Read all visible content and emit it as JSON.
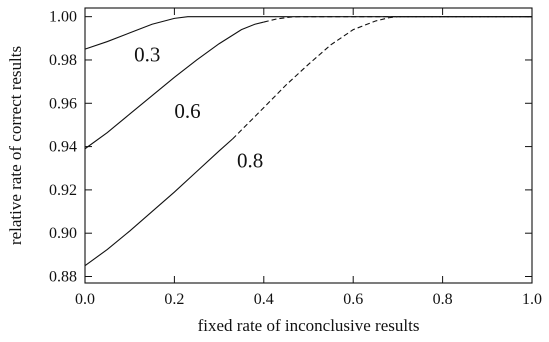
{
  "chart_data": {
    "type": "line",
    "title": "",
    "xlabel": "fixed rate of inconclusive results",
    "ylabel": "relative rate of correct results",
    "xlim": [
      0.0,
      1.0
    ],
    "ylim": [
      0.877,
      1.004
    ],
    "x_ticks": [
      0.0,
      0.2,
      0.4,
      0.6,
      0.8,
      1.0
    ],
    "x_tick_labels": [
      "0.0",
      "0.2",
      "0.4",
      "0.6",
      "0.8",
      "1.0"
    ],
    "y_ticks": [
      0.88,
      0.9,
      0.92,
      0.94,
      0.96,
      0.98,
      1.0
    ],
    "y_tick_labels": [
      "0.88",
      "0.90",
      "0.92",
      "0.94",
      "0.96",
      "0.98",
      "1.00"
    ],
    "grid": false,
    "colors": {
      "line": "#111111",
      "axes": "#111111"
    },
    "series": [
      {
        "name": "0.3",
        "solid": {
          "x": [
            0.0,
            0.05,
            0.1,
            0.15,
            0.2,
            0.23,
            0.3,
            0.4,
            0.5,
            0.6,
            0.7,
            0.8,
            0.9,
            1.0
          ],
          "y": [
            0.985,
            0.9885,
            0.9925,
            0.9965,
            0.9992,
            1.0,
            1.0,
            1.0,
            1.0,
            1.0,
            1.0,
            1.0,
            1.0,
            1.0
          ]
        },
        "dashed": {
          "x": [],
          "y": []
        }
      },
      {
        "name": "0.6",
        "solid": {
          "x": [
            0.0,
            0.05,
            0.1,
            0.15,
            0.2,
            0.25,
            0.3,
            0.35,
            0.38,
            0.4
          ],
          "y": [
            0.939,
            0.9465,
            0.955,
            0.9635,
            0.972,
            0.98,
            0.9875,
            0.994,
            0.9965,
            0.9975
          ]
        },
        "dashed": {
          "x": [
            0.4,
            0.43,
            0.46,
            0.48,
            0.5,
            0.6,
            0.7,
            0.8,
            0.9,
            1.0
          ],
          "y": [
            0.9975,
            0.999,
            0.9998,
            1.0,
            1.0,
            1.0,
            1.0,
            1.0,
            1.0,
            1.0
          ]
        }
      },
      {
        "name": "0.8",
        "solid": {
          "x": [
            0.0,
            0.05,
            0.1,
            0.15,
            0.2,
            0.25,
            0.3,
            0.33
          ],
          "y": [
            0.885,
            0.8925,
            0.901,
            0.91,
            0.919,
            0.9285,
            0.938,
            0.9435
          ]
        },
        "dashed": {
          "x": [
            0.33,
            0.4,
            0.45,
            0.5,
            0.55,
            0.6,
            0.65,
            0.68,
            0.7,
            0.8,
            0.9,
            1.0
          ],
          "y": [
            0.9435,
            0.958,
            0.9685,
            0.978,
            0.987,
            0.994,
            0.998,
            0.9995,
            1.0,
            1.0,
            1.0,
            1.0
          ]
        }
      }
    ],
    "annotations": [
      {
        "text": "0.3",
        "x": 0.11,
        "y": 0.9885
      },
      {
        "text": "0.6",
        "x": 0.2,
        "y": 0.9625
      },
      {
        "text": "0.8",
        "x": 0.34,
        "y": 0.9395
      }
    ]
  }
}
